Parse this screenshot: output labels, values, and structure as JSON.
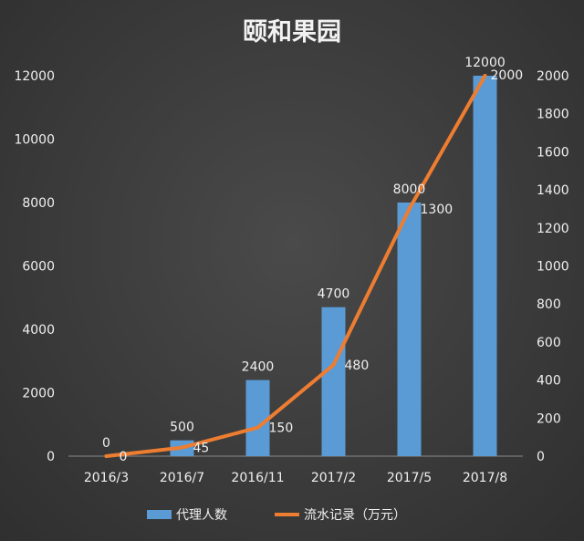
{
  "chart_data": {
    "type": "bar",
    "title": "颐和果园",
    "categories": [
      "2016/3",
      "2016/7",
      "2016/11",
      "2017/2",
      "2017/5",
      "2017/8"
    ],
    "series": [
      {
        "name": "代理人数",
        "type": "bar",
        "axis": "left",
        "values": [
          0,
          500,
          2400,
          4700,
          8000,
          12000
        ],
        "color": "#5b9bd5"
      },
      {
        "name": "流水记录（万元）",
        "type": "line",
        "axis": "right",
        "values": [
          0,
          45,
          150,
          480,
          1300,
          2000
        ],
        "color": "#ed7d31"
      }
    ],
    "y_left": {
      "min": 0,
      "max": 12000,
      "ticks": [
        0,
        2000,
        4000,
        6000,
        8000,
        10000,
        12000
      ]
    },
    "y_right": {
      "min": 0,
      "max": 2000,
      "ticks": [
        0,
        200,
        400,
        600,
        800,
        1000,
        1200,
        1400,
        1600,
        1800,
        2000
      ]
    },
    "grid": false,
    "legend": "bottom"
  }
}
